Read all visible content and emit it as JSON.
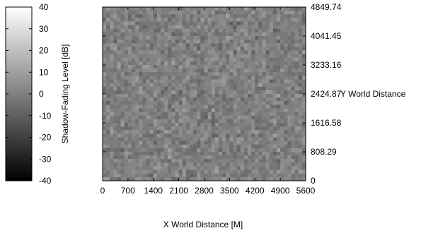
{
  "chart_data": {
    "type": "heatmap",
    "title": "",
    "xlabel": "X World Distance [M]",
    "ylabel": "Y World Distance",
    "xlim": [
      0,
      5600
    ],
    "ylim": [
      0,
      4849.74
    ],
    "x_ticks": [
      "0",
      "700",
      "1400",
      "2100",
      "2800",
      "3500",
      "4200",
      "4900",
      "5600"
    ],
    "y_ticks": [
      "0",
      "808.29",
      "1616.58",
      "2424.87",
      "3233.16",
      "4041.45",
      "4849.74"
    ],
    "grid": false,
    "cell_grid": {
      "cols": 56,
      "rows": 48
    },
    "value_distribution": {
      "mean": 0,
      "spread": 4,
      "note": "random shadow fading field, roughly uniform mid-gray"
    },
    "colorbar": {
      "label": "Shadow-Fading Level [dB]",
      "range": [
        -40,
        40
      ],
      "ticks": [
        "40",
        "30",
        "20",
        "10",
        "0",
        "-10",
        "-20",
        "-30",
        "-40"
      ],
      "colormap": "gray"
    }
  }
}
